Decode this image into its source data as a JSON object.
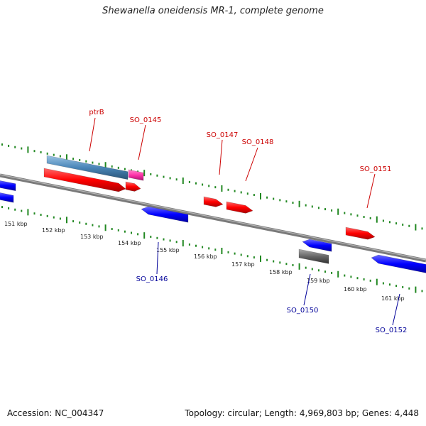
{
  "title": "Shewanella oneidensis MR-1, complete genome",
  "footer": {
    "accession": "Accession: NC_004347",
    "summary": "Topology: circular; Length: 4,969,803 bp; Genes: 4,448"
  },
  "colors": {
    "forward": "#ff0000",
    "reverse": "#0000ff",
    "pink": "#ff33aa",
    "steel": "#4a86b8",
    "gray": "#666666",
    "tick": "#228822",
    "backbone": "#888888",
    "label_forward": "#cc0000",
    "label_reverse": "#000099"
  },
  "scale": {
    "labels": [
      "151 kbp",
      "152 kbp",
      "153 kbp",
      "154 kbp",
      "155 kbp",
      "156 kbp",
      "157 kbp",
      "158 kbp",
      "159 kbp",
      "160 kbp",
      "161 kbp"
    ]
  },
  "genes": [
    {
      "name": "ptrB",
      "strand": "forward",
      "color": "steel",
      "labeled": true
    },
    {
      "name": "SO_0145",
      "strand": "forward",
      "color": "pink",
      "labeled": true
    },
    {
      "name": "SO_0146",
      "strand": "reverse",
      "color": "reverse",
      "labeled": true
    },
    {
      "name": "SO_0147",
      "strand": "forward",
      "color": "forward",
      "labeled": true
    },
    {
      "name": "SO_0148",
      "strand": "forward",
      "color": "forward",
      "labeled": true
    },
    {
      "name": "SO_0150",
      "strand": "reverse",
      "color": "gray",
      "labeled": true
    },
    {
      "name": "SO_0151",
      "strand": "forward",
      "color": "forward",
      "labeled": true
    },
    {
      "name": "SO_0152",
      "strand": "reverse",
      "color": "reverse",
      "labeled": true
    }
  ]
}
